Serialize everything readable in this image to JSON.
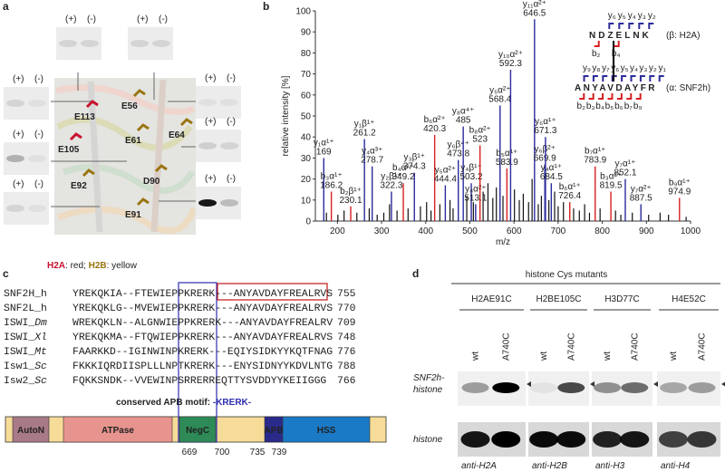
{
  "panel_a": {
    "label": "a",
    "blots": [
      [
        "(+)",
        "(-)"
      ],
      [
        "(+)",
        "(-)"
      ],
      [
        "(+)",
        "(-)"
      ],
      [
        "(+)",
        "(-)"
      ],
      [
        "(+)",
        "(-)"
      ],
      [
        "(+)",
        "(-)"
      ],
      [
        "(+)",
        "(-)"
      ],
      [
        "(+)",
        "(-)"
      ]
    ],
    "residues": [
      {
        "text": "E113",
        "color": "#c8102e"
      },
      {
        "text": "E56",
        "color": "#9a7412"
      },
      {
        "text": "E61",
        "color": "#9a7412"
      },
      {
        "text": "E64",
        "color": "#9a7412"
      },
      {
        "text": "E105",
        "color": "#c8102e"
      },
      {
        "text": "E92",
        "color": "#9a7412"
      },
      {
        "text": "D90",
        "color": "#9a7412"
      },
      {
        "text": "E91",
        "color": "#9a7412"
      }
    ],
    "caption": [
      {
        "text": "H2A",
        "color": "#c8102e"
      },
      {
        "text": ": red; "
      },
      {
        "text": "H2B",
        "color": "#9a7412"
      },
      {
        "text": ": yellow"
      }
    ]
  },
  "chart_data": {
    "type": "spectrum",
    "xlabel": "m/z",
    "ylabel": "relative intensity [%]",
    "xlim": [
      150,
      1000
    ],
    "ylim": [
      0,
      100
    ],
    "xticks": [
      200,
      300,
      400,
      500,
      600,
      700,
      800,
      900,
      1000
    ],
    "yticks": [
      0,
      10,
      20,
      30,
      40,
      50,
      60,
      70,
      80,
      90,
      100
    ],
    "color": "#111111",
    "peaks": [
      {
        "ion": "y₁α¹⁺",
        "mz": 169.0,
        "intensity": 30,
        "color": "#2b2b9c"
      },
      {
        "ion": "b₃α¹⁺",
        "mz": 186.2,
        "intensity": 14,
        "color": "#d62020"
      },
      {
        "ion": "b₂β¹⁺",
        "mz": 230.1,
        "intensity": 7,
        "color": "#d62020"
      },
      {
        "ion": "y₁β¹⁺",
        "mz": 261.2,
        "intensity": 39,
        "color": "#2b2b9c"
      },
      {
        "ion": "y₄α³⁺",
        "mz": 278.7,
        "intensity": 26,
        "color": "#2b2b9c"
      },
      {
        "ion": "y₂β¹⁺",
        "mz": 322.3,
        "intensity": 14,
        "color": "#2b2b9c"
      },
      {
        "ion": "b₄α¹⁺",
        "mz": 349.2,
        "intensity": 18,
        "color": "#d62020"
      },
      {
        "ion": "y₃β¹⁺",
        "mz": 374.3,
        "intensity": 23,
        "color": "#2b2b9c"
      },
      {
        "ion": "b₆α²⁺",
        "mz": 420.3,
        "intensity": 41,
        "color": "#d62020"
      },
      {
        "ion": "y₅α²⁺",
        "mz": 444.4,
        "intensity": 17,
        "color": "#2b2b9c"
      },
      {
        "ion": "y₆β⁴⁺",
        "mz": 473.8,
        "intensity": 29,
        "color": "#2b2b9c"
      },
      {
        "ion": "y₈α⁴⁺",
        "mz": 485.0,
        "intensity": 45,
        "color": "#2b2b9c"
      },
      {
        "ion": "y₄β¹⁺",
        "mz": 503.2,
        "intensity": 18,
        "color": "#2b2b9c"
      },
      {
        "ion": "y₄α²⁺",
        "mz": 513.1,
        "intensity": 8,
        "color": "#2b2b9c"
      },
      {
        "ion": "b₈α²⁺",
        "mz": 523.0,
        "intensity": 36,
        "color": "#d62020"
      },
      {
        "ion": "y₅α²⁺",
        "mz": 568.4,
        "intensity": 55,
        "color": "#2b2b9c"
      },
      {
        "ion": "b₅α¹⁺",
        "mz": 583.9,
        "intensity": 25,
        "color": "#d62020"
      },
      {
        "ion": "y₁₀α²⁺",
        "mz": 592.3,
        "intensity": 72,
        "color": "#2b2b9c"
      },
      {
        "ion": "y₁₁α²⁺",
        "mz": 646.5,
        "intensity": 96,
        "color": "#2b2b9c"
      },
      {
        "ion": "y₆β²⁺",
        "mz": 669.9,
        "intensity": 27,
        "color": "#2b2b9c"
      },
      {
        "ion": "y₆α¹⁺",
        "mz": 671.3,
        "intensity": 40,
        "color": "#2b2b9c"
      },
      {
        "ion": "y₄α¹⁺",
        "mz": 684.5,
        "intensity": 18,
        "color": "#2b2b9c"
      },
      {
        "ion": "b₆α¹⁺",
        "mz": 726.4,
        "intensity": 9,
        "color": "#d62020"
      },
      {
        "ion": "b₇α¹⁺",
        "mz": 783.9,
        "intensity": 26,
        "color": "#d62020"
      },
      {
        "ion": "b₃α²⁺",
        "mz": 819.5,
        "intensity": 14,
        "color": "#d62020"
      },
      {
        "ion": "y₇α¹⁺",
        "mz": 852.1,
        "intensity": 20,
        "color": "#2b2b9c"
      },
      {
        "ion": "y₇α²⁺",
        "mz": 887.5,
        "intensity": 8,
        "color": "#2b2b9c"
      },
      {
        "ion": "b₉α¹⁺",
        "mz": 974.9,
        "intensity": 11,
        "color": "#d62020"
      }
    ],
    "background_peaks": {
      "mz": [
        175,
        201,
        215,
        244,
        272,
        290,
        305,
        318,
        335,
        360,
        388,
        402,
        412,
        432,
        455,
        462,
        493,
        508,
        530,
        541,
        552,
        560,
        575,
        601,
        612,
        621,
        633,
        641,
        655,
        662,
        679,
        692,
        700,
        712,
        735,
        748,
        760,
        771,
        795,
        830,
        842,
        868,
        905,
        931,
        950,
        990
      ],
      "intensity": [
        4,
        3,
        5,
        4,
        6,
        3,
        4,
        8,
        5,
        6,
        7,
        9,
        5,
        8,
        10,
        6,
        12,
        9,
        14,
        18,
        11,
        16,
        12,
        15,
        10,
        13,
        9,
        20,
        8,
        12,
        10,
        14,
        7,
        9,
        6,
        5,
        8,
        4,
        6,
        5,
        3,
        4,
        3,
        4,
        3,
        2
      ]
    }
  },
  "panel_b": {
    "label": "b",
    "beta": {
      "sequence": "NDZELNK",
      "name": "(β: H2A)",
      "y_ions": [
        "y₆",
        "y₅",
        "y₄",
        "y₃",
        "y₂"
      ],
      "b_ions": [
        "b₂",
        "b₄"
      ]
    },
    "alpha": {
      "sequence": "ANYAVDAYFR",
      "name": "(α: SNF2h)",
      "y_ions": [
        "y₉",
        "y₈",
        "y₇",
        "y₆",
        "y₅",
        "y₄",
        "y₃",
        "y₂",
        "y₁"
      ],
      "b_ions": [
        "b₂",
        "b₃",
        "b₄",
        "b₅",
        "b₆",
        "b₇",
        "b₉"
      ]
    }
  },
  "panel_c": {
    "label": "c",
    "rows": [
      {
        "name": "SNF2H_h",
        "seq": "YREKQKIA--FTEWIEPPKRERK---ANYAVDAYFREALRVS",
        "end": 755
      },
      {
        "name": "SNF2L_h",
        "seq": "YREKQKLG--MVEWIEPPKRERK---ANYAVDAYFREALRVS",
        "end": 770
      },
      {
        "name": "ISWI_",
        "species": "Dm",
        "seq": "WREKQKLN--ALGNWIEPPKRERK---ANYAVDAYFREALRV",
        "end": 709
      },
      {
        "name": "ISWI_",
        "species": "Xl",
        "seq": "YREKQKMA--FTQWIEPPKRERK---ANYAVDAYFREALRVS",
        "end": 748
      },
      {
        "name": "ISWI_",
        "species": "Mt",
        "seq": "FAARKKD--IGINWINPKRERK---EQIYSIDKYYKQTFNAG",
        "end": 776
      },
      {
        "name": "Isw1_",
        "species": "Sc",
        "seq": "FKKKIQRDIISPLLLNPTKRERK---ENYSIDNYYKDVLNTG",
        "end": 788
      },
      {
        "name": "Isw2_",
        "species": "Sc",
        "seq": "FQKKSNDK--VVEWINPSRRERREQTTYSVDDYYKEIIGGG",
        "end": 766
      }
    ],
    "motif_label": "conserved APB motif: ",
    "motif": "-KRERK-",
    "domains": [
      {
        "name": "AutoN",
        "color": "#a87a88"
      },
      {
        "name": "ATPase",
        "color": "#e8948e"
      },
      {
        "name": "NegC",
        "color": "#2e8b57"
      },
      {
        "name": "APB",
        "color": "#2a2a8a"
      },
      {
        "name": "HSS",
        "color": "#1a7ac6"
      }
    ],
    "positions": [
      669,
      700,
      735,
      739
    ]
  },
  "panel_d": {
    "label": "d",
    "title": "histone Cys mutants",
    "row_labels": [
      [
        "SNF2h-",
        "histone"
      ],
      [
        "histone"
      ]
    ],
    "columns": [
      {
        "name": "H2AE91C",
        "lanes": [
          "wt",
          "A740C"
        ],
        "antibody": "anti-H2A"
      },
      {
        "name": "H2BE105C",
        "lanes": [
          "wt",
          "A740C"
        ],
        "antibody": "anti-H2B"
      },
      {
        "name": "H3D77C",
        "lanes": [
          "wt",
          "A740C"
        ],
        "antibody": "anti-H3"
      },
      {
        "name": "H4E52C",
        "lanes": [
          "wt",
          "A740C"
        ],
        "antibody": "anti-H4"
      }
    ]
  }
}
